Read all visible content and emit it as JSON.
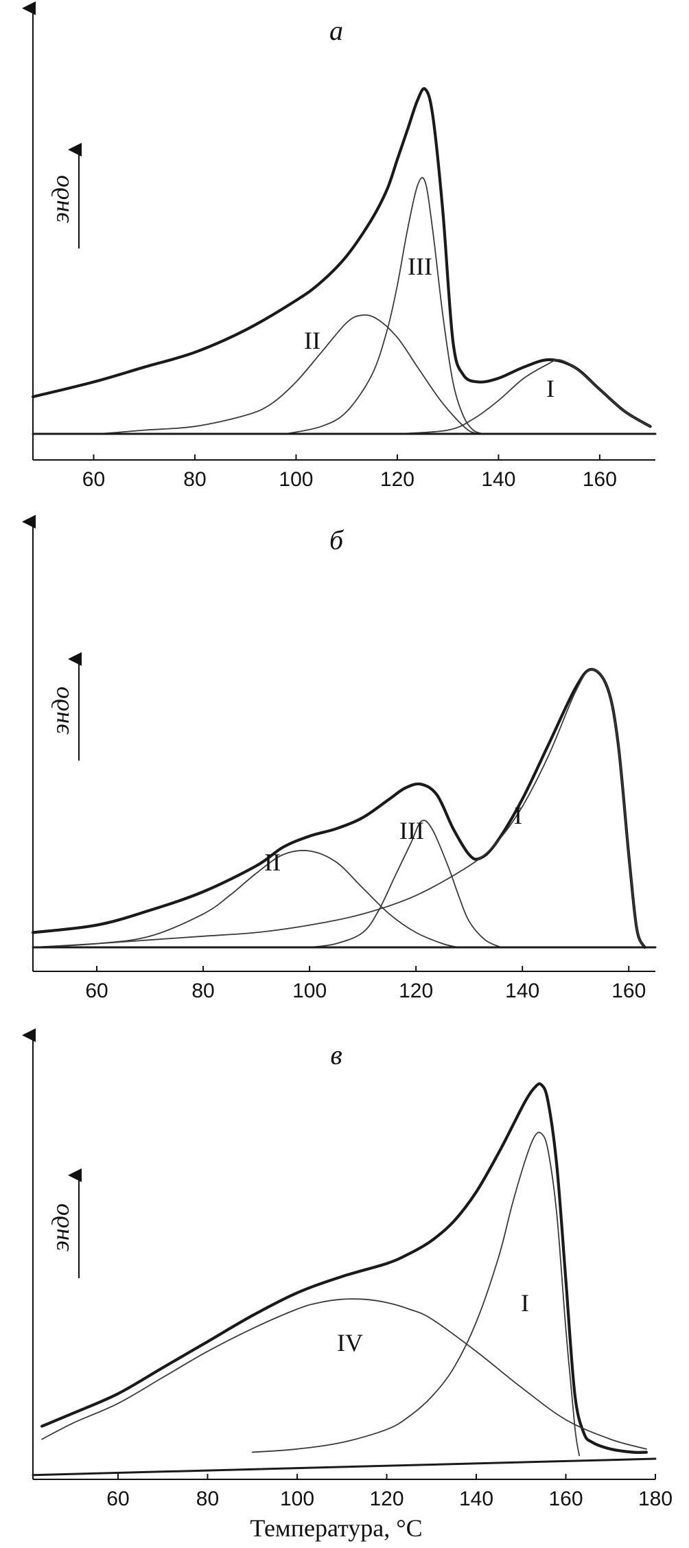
{
  "chart_data": [
    {
      "type": "line",
      "panel_label": "а",
      "ylabel": "эндо",
      "xlabel": "",
      "xlim": [
        48,
        171
      ],
      "xticks": [
        60,
        80,
        100,
        120,
        140,
        160
      ],
      "series": [
        {
          "name": "",
          "role": "total",
          "x": [
            48,
            60,
            70,
            80,
            90,
            100,
            105,
            110,
            115,
            118,
            120,
            122,
            124,
            125.5,
            127,
            129,
            131,
            133,
            136,
            140,
            145,
            150,
            155,
            160,
            165,
            170
          ],
          "y": [
            0.1,
            0.14,
            0.18,
            0.22,
            0.28,
            0.36,
            0.41,
            0.48,
            0.58,
            0.66,
            0.74,
            0.82,
            0.9,
            0.93,
            0.86,
            0.6,
            0.25,
            0.16,
            0.14,
            0.15,
            0.18,
            0.2,
            0.18,
            0.12,
            0.06,
            0.02
          ]
        },
        {
          "name": "II",
          "role": "component",
          "x": [
            48,
            60,
            70,
            80,
            90,
            95,
            100,
            105,
            110,
            113,
            116,
            120,
            124,
            128,
            131,
            134,
            136
          ],
          "y": [
            0.0,
            0.0,
            0.01,
            0.02,
            0.05,
            0.08,
            0.14,
            0.22,
            0.3,
            0.32,
            0.31,
            0.26,
            0.18,
            0.1,
            0.05,
            0.01,
            0.0
          ]
        },
        {
          "name": "III",
          "role": "component",
          "x": [
            98,
            105,
            110,
            115,
            118,
            120,
            122,
            124,
            125.5,
            127,
            129,
            131,
            133,
            135,
            137
          ],
          "y": [
            0.0,
            0.02,
            0.06,
            0.16,
            0.28,
            0.4,
            0.55,
            0.67,
            0.68,
            0.55,
            0.32,
            0.14,
            0.05,
            0.01,
            0.0
          ]
        },
        {
          "name": "I",
          "role": "component",
          "x": [
            120,
            130,
            135,
            140,
            145,
            150,
            152,
            155,
            160,
            165,
            170
          ],
          "y": [
            0.0,
            0.01,
            0.04,
            0.09,
            0.15,
            0.19,
            0.2,
            0.18,
            0.12,
            0.06,
            0.02
          ]
        },
        {
          "name": "",
          "role": "baseline",
          "x": [
            48,
            171
          ],
          "y": [
            0.0,
            0.0
          ]
        }
      ],
      "annotations": [
        "II",
        "III",
        "I"
      ]
    },
    {
      "type": "line",
      "panel_label": "б",
      "ylabel": "эндо",
      "xlabel": "",
      "xlim": [
        48,
        165
      ],
      "xticks": [
        60,
        80,
        100,
        120,
        140,
        160
      ],
      "series": [
        {
          "name": "",
          "role": "total",
          "x": [
            48,
            60,
            70,
            80,
            90,
            95,
            100,
            105,
            110,
            115,
            118,
            121,
            124,
            127,
            130,
            132,
            135,
            140,
            145,
            150,
            153,
            156,
            158,
            160,
            161.5,
            163
          ],
          "y": [
            0.04,
            0.06,
            0.1,
            0.15,
            0.22,
            0.27,
            0.3,
            0.32,
            0.35,
            0.4,
            0.43,
            0.44,
            0.41,
            0.32,
            0.25,
            0.24,
            0.28,
            0.4,
            0.55,
            0.7,
            0.75,
            0.7,
            0.55,
            0.25,
            0.05,
            0.0
          ]
        },
        {
          "name": "II",
          "role": "component",
          "x": [
            48,
            60,
            70,
            80,
            85,
            90,
            95,
            100,
            105,
            110,
            115,
            120,
            125,
            128
          ],
          "y": [
            0.0,
            0.01,
            0.03,
            0.09,
            0.14,
            0.2,
            0.25,
            0.26,
            0.23,
            0.16,
            0.09,
            0.04,
            0.01,
            0.0
          ]
        },
        {
          "name": "III",
          "role": "component",
          "x": [
            100,
            105,
            110,
            113,
            116,
            119,
            121,
            123,
            126,
            128,
            130,
            133,
            136
          ],
          "y": [
            0.0,
            0.01,
            0.04,
            0.1,
            0.19,
            0.28,
            0.34,
            0.32,
            0.22,
            0.14,
            0.07,
            0.02,
            0.0
          ]
        },
        {
          "name": "I",
          "role": "component",
          "x": [
            48,
            60,
            70,
            80,
            90,
            100,
            110,
            120,
            130,
            135,
            140,
            145,
            150,
            153,
            156,
            158,
            160,
            161.5,
            163
          ],
          "y": [
            0.0,
            0.01,
            0.02,
            0.03,
            0.04,
            0.06,
            0.09,
            0.14,
            0.22,
            0.28,
            0.38,
            0.52,
            0.69,
            0.75,
            0.7,
            0.55,
            0.25,
            0.05,
            0.0
          ]
        },
        {
          "name": "",
          "role": "baseline",
          "x": [
            48,
            165
          ],
          "y": [
            0.0,
            0.0
          ]
        }
      ],
      "annotations": [
        "II",
        "III",
        "I"
      ]
    },
    {
      "type": "line",
      "panel_label": "в",
      "ylabel": "эндо",
      "xlabel": "Температура, °C",
      "xlim": [
        41,
        180
      ],
      "xticks": [
        60,
        80,
        100,
        120,
        140,
        160,
        180
      ],
      "series": [
        {
          "name": "",
          "role": "total",
          "x": [
            43,
            50,
            60,
            70,
            80,
            90,
            100,
            110,
            120,
            125,
            130,
            135,
            140,
            145,
            148,
            151,
            153,
            154.5,
            156,
            158,
            160,
            162,
            164,
            166,
            170,
            175,
            178
          ],
          "y": [
            0.1,
            0.14,
            0.2,
            0.28,
            0.36,
            0.44,
            0.51,
            0.56,
            0.6,
            0.63,
            0.67,
            0.73,
            0.82,
            0.94,
            1.02,
            1.1,
            1.14,
            1.15,
            1.1,
            0.9,
            0.55,
            0.2,
            0.08,
            0.05,
            0.03,
            0.02,
            0.02
          ]
        },
        {
          "name": "IV",
          "role": "component",
          "x": [
            43,
            50,
            60,
            70,
            80,
            90,
            100,
            105,
            110,
            115,
            120,
            125,
            130,
            140,
            150,
            160,
            170,
            178
          ],
          "y": [
            0.06,
            0.11,
            0.17,
            0.25,
            0.33,
            0.4,
            0.46,
            0.48,
            0.49,
            0.49,
            0.48,
            0.46,
            0.43,
            0.33,
            0.22,
            0.12,
            0.06,
            0.03
          ]
        },
        {
          "name": "I",
          "role": "component",
          "x": [
            90,
            100,
            110,
            120,
            125,
            130,
            135,
            140,
            145,
            148,
            151,
            153,
            154.5,
            156,
            158,
            160,
            162,
            163
          ],
          "y": [
            0.02,
            0.03,
            0.05,
            0.09,
            0.13,
            0.19,
            0.28,
            0.42,
            0.62,
            0.78,
            0.92,
            0.99,
            1.0,
            0.95,
            0.75,
            0.4,
            0.1,
            0.01
          ]
        },
        {
          "name": "",
          "role": "baseline",
          "x": [
            41,
            180
          ],
          "y": [
            -0.05,
            0.0
          ]
        }
      ],
      "annotations": [
        "IV",
        "I"
      ]
    }
  ]
}
